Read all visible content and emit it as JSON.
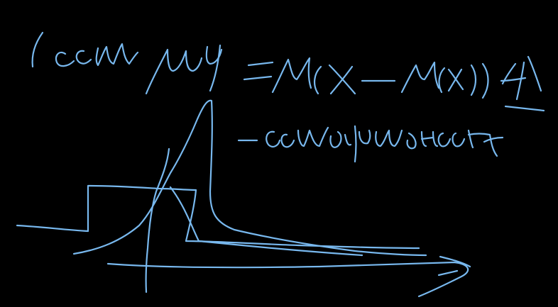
{
  "canvas": {
    "background": "#000000",
    "ink_color": "#78b8ee"
  },
  "handwriting": {
    "line1": "( если μ4 = M(X−M(X))⁴",
    "line2": "− островершинность"
  }
}
